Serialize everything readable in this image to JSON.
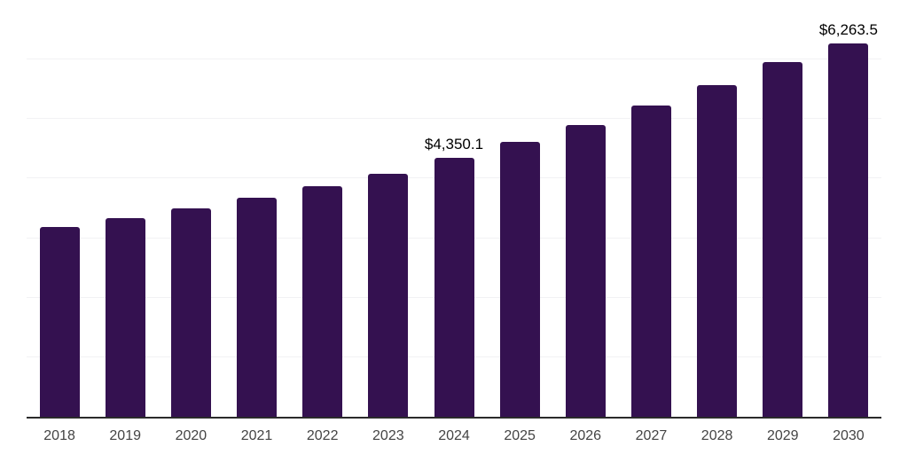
{
  "chart_data": {
    "type": "bar",
    "title": "",
    "xlabel": "",
    "ylabel": "",
    "categories": [
      "2018",
      "2019",
      "2020",
      "2021",
      "2022",
      "2023",
      "2024",
      "2025",
      "2026",
      "2027",
      "2028",
      "2029",
      "2030"
    ],
    "values": [
      3190,
      3340,
      3505,
      3680,
      3875,
      4085,
      4350.1,
      4615,
      4905,
      5225,
      5565,
      5965,
      6263.5
    ],
    "annotations": [
      {
        "category": "2024",
        "text": "$4,350.1"
      },
      {
        "category": "2030",
        "text": "$6,263.5"
      }
    ],
    "ylim": [
      0,
      7000
    ],
    "grid": {
      "visible": true,
      "orientation": "horizontal",
      "step": 1000
    },
    "y_axis_ticks_visible": false,
    "legend": "none",
    "colors": {
      "bar": "#341150",
      "axis_line": "#2b2b2b",
      "gridline": "#f2f2f4",
      "tick_label": "#444444",
      "annotation": "#000000",
      "background": "#ffffff"
    }
  }
}
